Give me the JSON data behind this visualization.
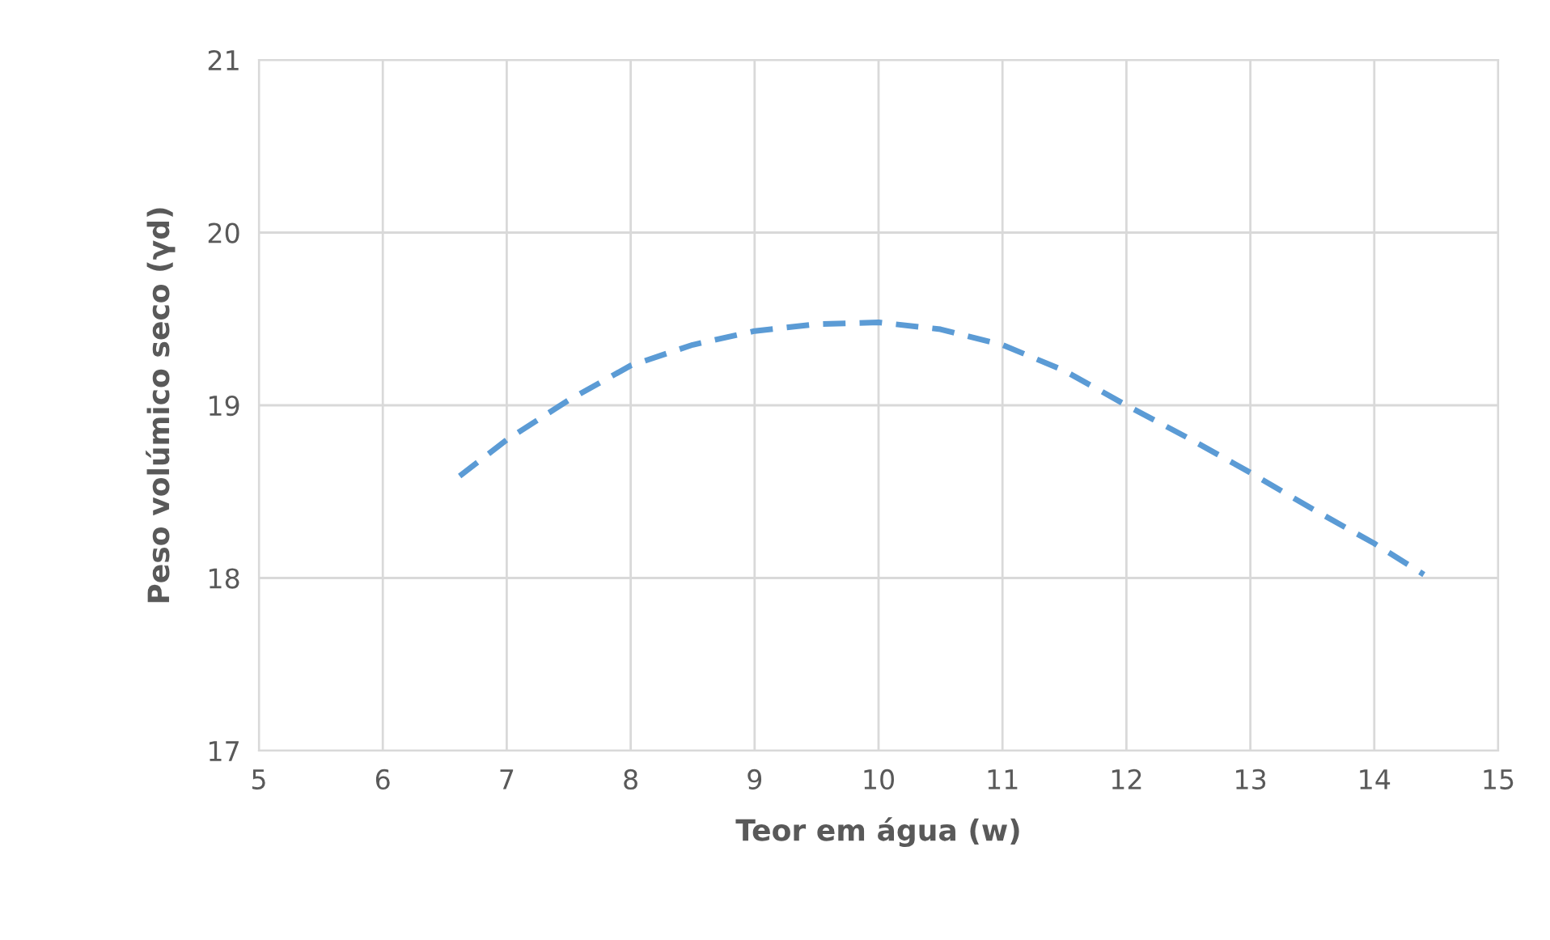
{
  "chart_data": {
    "type": "line",
    "xlabel": "Teor em água (w)",
    "ylabel": "Peso volúmico seco (γd)",
    "x": [
      6.62,
      7.0,
      7.5,
      8.0,
      8.5,
      9.0,
      9.5,
      10.0,
      10.5,
      11.0,
      11.5,
      12.0,
      12.5,
      13.0,
      13.5,
      14.0,
      14.4
    ],
    "series": [
      {
        "color": "#5b9bd5",
        "values": [
          18.59,
          18.8,
          19.03,
          19.23,
          19.35,
          19.43,
          19.47,
          19.48,
          19.44,
          19.35,
          19.2,
          19.0,
          18.81,
          18.61,
          18.4,
          18.2,
          18.02
        ]
      }
    ],
    "xlim": [
      5,
      15
    ],
    "ylim": [
      17,
      21
    ],
    "xticks": [
      5,
      6,
      7,
      8,
      9,
      10,
      11,
      12,
      13,
      14,
      15
    ],
    "yticks": [
      17,
      18,
      19,
      20,
      21
    ],
    "grid": true,
    "line_style": "dashed",
    "marker": "none"
  }
}
